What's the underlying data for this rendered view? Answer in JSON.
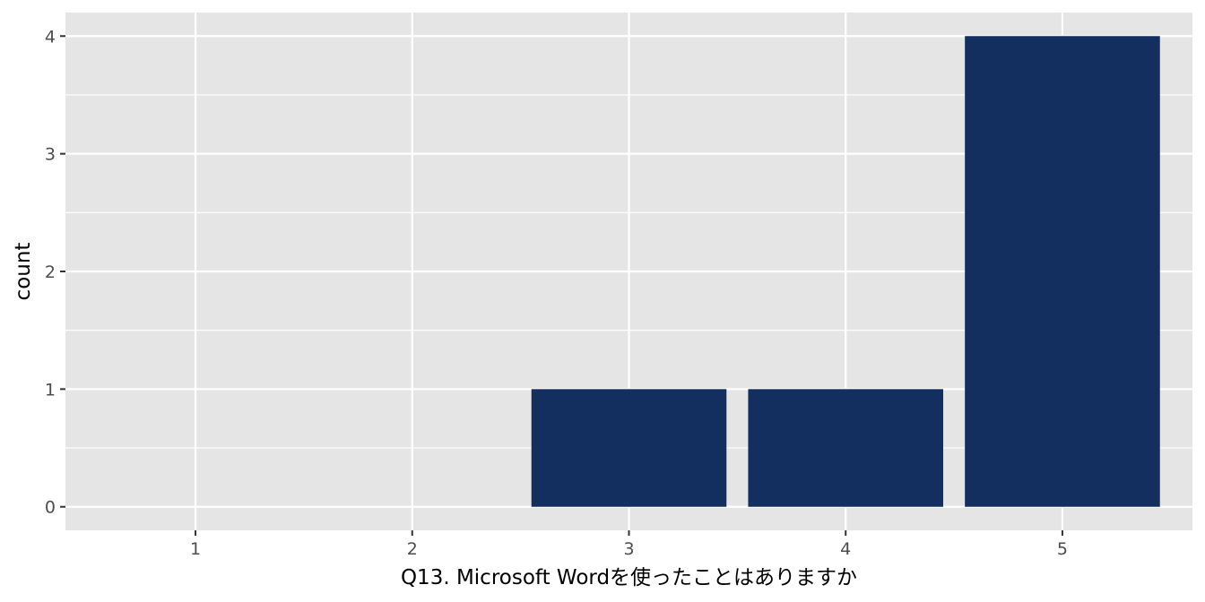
{
  "chart_data": {
    "type": "bar",
    "categories": [
      "1",
      "2",
      "3",
      "4",
      "5"
    ],
    "values": [
      0,
      0,
      1,
      1,
      4
    ],
    "xlabel": "Q13. Microsoft Wordを使ったことはありますか",
    "ylabel": "count",
    "ylim": [
      -0.2,
      4.2
    ],
    "yticks": [
      "0",
      "1",
      "2",
      "3",
      "4"
    ],
    "grid": true,
    "colors": {
      "panel": "#e5e5e5",
      "grid": "#ffffff",
      "bar": "#132f60",
      "tick": "#333333"
    }
  }
}
